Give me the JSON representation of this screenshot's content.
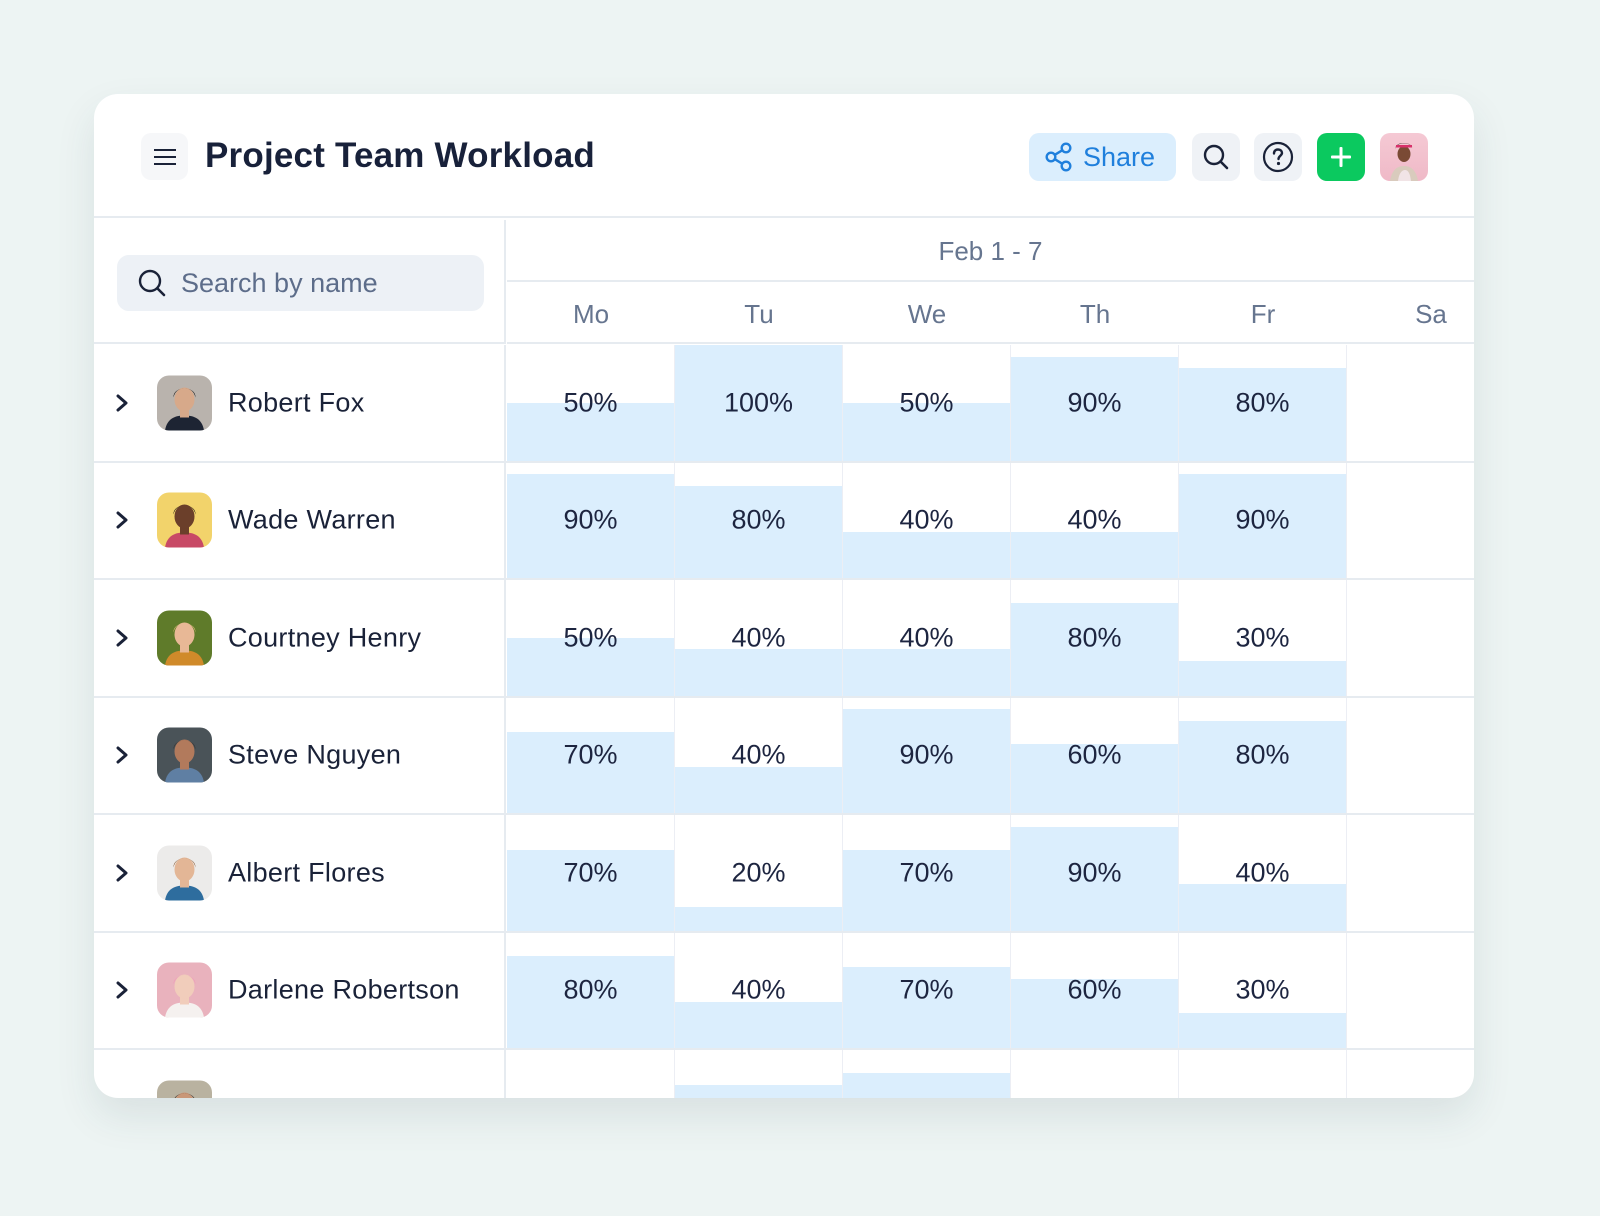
{
  "header": {
    "title": "Project Team Workload",
    "share_label": "Share",
    "icons": {
      "menu": "hamburger-menu-icon",
      "share": "share-icon",
      "search": "search-icon",
      "help": "help-circle-icon",
      "add": "plus-icon",
      "avatar": "current-user-avatar"
    }
  },
  "colors": {
    "background": "#edf4f3",
    "accent_blue": "#1f7fdc",
    "share_bg": "#dbeefd",
    "add_green": "#0bc95f",
    "workload_fill": "#dbeefd",
    "text_primary": "#1a2238",
    "text_muted": "#66758f"
  },
  "search": {
    "placeholder": "Search by name",
    "value": ""
  },
  "timeline": {
    "range_label": "Feb 1 - 7",
    "days": [
      "Mo",
      "Tu",
      "We",
      "Th",
      "Fr",
      "Sa"
    ]
  },
  "people": [
    {
      "name": "Robert Fox",
      "workload": [
        "50%",
        "100%",
        "50%",
        "90%",
        "80%"
      ],
      "values": [
        50,
        100,
        50,
        90,
        80
      ]
    },
    {
      "name": "Wade Warren",
      "workload": [
        "90%",
        "80%",
        "40%",
        "40%",
        "90%"
      ],
      "values": [
        90,
        80,
        40,
        40,
        90
      ]
    },
    {
      "name": "Courtney Henry",
      "workload": [
        "50%",
        "40%",
        "40%",
        "80%",
        "30%"
      ],
      "values": [
        50,
        40,
        40,
        80,
        30
      ]
    },
    {
      "name": "Steve Nguyen",
      "workload": [
        "70%",
        "40%",
        "90%",
        "60%",
        "80%"
      ],
      "values": [
        70,
        40,
        90,
        60,
        80
      ]
    },
    {
      "name": "Albert Flores",
      "workload": [
        "70%",
        "20%",
        "70%",
        "90%",
        "40%"
      ],
      "values": [
        70,
        20,
        70,
        90,
        40
      ]
    },
    {
      "name": "Darlene Robertson",
      "workload": [
        "80%",
        "40%",
        "70%",
        "60%",
        "30%"
      ],
      "values": [
        80,
        40,
        70,
        60,
        30
      ]
    },
    {
      "name": "",
      "workload": [
        "",
        "",
        "",
        "",
        ""
      ],
      "values": [
        0,
        70,
        80,
        0,
        0
      ]
    }
  ]
}
